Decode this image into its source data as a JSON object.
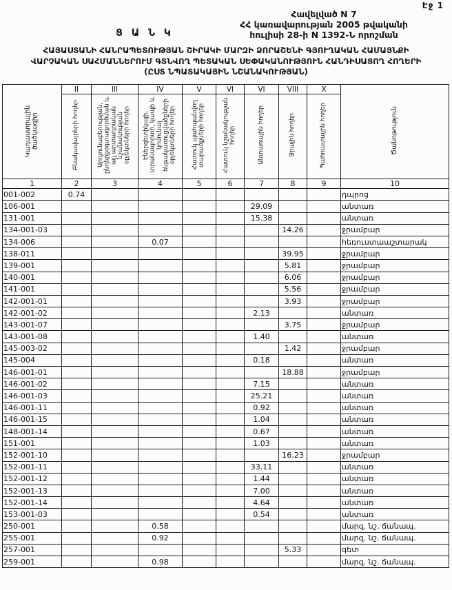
{
  "page": {
    "page_label": "Էջ 1"
  },
  "header": {
    "appendix": "Հավելված N 7",
    "decree_line1": "ՀՀ կառավարության 2005 թվականի",
    "decree_line2": "հուլիսի 28-ի N 1392-Ն որոշման",
    "title": "Ց Ա Ն Կ",
    "subtitle_line1": "ՀԱՅԱՍՏԱՆԻ ՀԱՆՐԱՊԵՏՈՒԹՅԱՆ ՇԻՐԱԿԻ ՄԱՐԶԻ ՁՈՐԱՇԵՆԻ ԳՅՈՒՂԱԿԱՆ ՀԱՄԱՅՆՔԻ",
    "subtitle_line2": "ՎԱՐՉԱԿԱՆ ՍԱՀՄԱՆՆԵՐՈՒՄ ԳՏՆՎՈՂ ՊԵՏԱԿԱՆ ՍԵՓԱԿԱՆՈՒԹՅՈՒՆ ՀԱՆԴԻՍԱՑՈՂ ՀՈՂԵՐԻ",
    "subtitle_line3": "(ԸՍՏ ՆՊԱՏԱԿԱՅԻՆ ՆՇԱՆԱԿՈՒԹՅԱՆ)"
  },
  "table": {
    "roman_numerals": [
      "II",
      "III",
      "IV",
      "V",
      "VI",
      "VI",
      "VIII",
      "X"
    ],
    "column_headers": [
      "Կադաստրային ծածկագիր",
      "Բնակավայրերի հողեր",
      "Արդյունաբերության, ընդերքօգտագործման և այլ արտադրական նշանակության օբյեկտների հողեր",
      "Էներգետիկայի, տրանսպորտի, կապի և կոմունալ ենթակառուցվածքների օբյեկտների հողեր",
      "Հատուկ պահպանվող տարածքների հողեր",
      "Հատուկ նշանակության հողեր",
      "Անտառային հողեր",
      "Ջրային հողեր",
      "Պահուստային հողեր",
      "Ծանոթություն"
    ],
    "column_numbers": [
      "1",
      "2",
      "3",
      "4",
      "5",
      "6",
      "7",
      "8",
      "9",
      "10"
    ],
    "rows": [
      [
        "001-002",
        "0.74",
        "",
        "",
        "",
        "",
        "",
        "",
        "",
        "դպրոց"
      ],
      [
        "106-001",
        "",
        "",
        "",
        "",
        "",
        "29.09",
        "",
        "",
        "անտառ"
      ],
      [
        "131-001",
        "",
        "",
        "",
        "",
        "",
        "15.38",
        "",
        "",
        "անտառ"
      ],
      [
        "134-001-03",
        "",
        "",
        "",
        "",
        "",
        "",
        "14.26",
        "",
        "ջրամբար"
      ],
      [
        "134-006",
        "",
        "",
        "0.07",
        "",
        "",
        "",
        "",
        "",
        "հեռուստաաշտարակ"
      ],
      [
        "138-011",
        "",
        "",
        "",
        "",
        "",
        "",
        "39.95",
        "",
        "ջրամբար"
      ],
      [
        "139-001",
        "",
        "",
        "",
        "",
        "",
        "",
        "5.81",
        "",
        "ջրամբար"
      ],
      [
        "140-001",
        "",
        "",
        "",
        "",
        "",
        "",
        "6.06",
        "",
        "ջրամբար"
      ],
      [
        "141-001",
        "",
        "",
        "",
        "",
        "",
        "",
        "5.56",
        "",
        "ջրամբար"
      ],
      [
        "142-001-01",
        "",
        "",
        "",
        "",
        "",
        "",
        "3.93",
        "",
        "ջրամբար"
      ],
      [
        "142-001-02",
        "",
        "",
        "",
        "",
        "",
        "2.13",
        "",
        "",
        "անտառ"
      ],
      [
        "143-001-07",
        "",
        "",
        "",
        "",
        "",
        "",
        "3.75",
        "",
        "ջրամբար"
      ],
      [
        "143-001-08",
        "",
        "",
        "",
        "",
        "",
        "1.40",
        "",
        "",
        "անտառ"
      ],
      [
        "145-003-02",
        "",
        "",
        "",
        "",
        "",
        "",
        "1.42",
        "",
        "ջրամբար"
      ],
      [
        "145-004",
        "",
        "",
        "",
        "",
        "",
        "0.18",
        "",
        "",
        "անտառ"
      ],
      [
        "146-001-01",
        "",
        "",
        "",
        "",
        "",
        "",
        "18.88",
        "",
        "ջրամբար"
      ],
      [
        "146-001-02",
        "",
        "",
        "",
        "",
        "",
        "7.15",
        "",
        "",
        "անտառ"
      ],
      [
        "146-001-03",
        "",
        "",
        "",
        "",
        "",
        "25.21",
        "",
        "",
        "անտառ"
      ],
      [
        "146-001-11",
        "",
        "",
        "",
        "",
        "",
        "0.92",
        "",
        "",
        "անտառ"
      ],
      [
        "146-001-15",
        "",
        "",
        "",
        "",
        "",
        "1.04",
        "",
        "",
        "անտառ"
      ],
      [
        "148-001-14",
        "",
        "",
        "",
        "",
        "",
        "0.67",
        "",
        "",
        "անտառ"
      ],
      [
        "151-001",
        "",
        "",
        "",
        "",
        "",
        "1.03",
        "",
        "",
        "անտառ"
      ],
      [
        "152-001-10",
        "",
        "",
        "",
        "",
        "",
        "",
        "16.23",
        "",
        "ջրամբար"
      ],
      [
        "152-001-11",
        "",
        "",
        "",
        "",
        "",
        "33.11",
        "",
        "",
        "անտառ"
      ],
      [
        "152-001-12",
        "",
        "",
        "",
        "",
        "",
        "1.44",
        "",
        "",
        "անտառ"
      ],
      [
        "152-001-13",
        "",
        "",
        "",
        "",
        "",
        "7.00",
        "",
        "",
        "անտառ"
      ],
      [
        "152-001-14",
        "",
        "",
        "",
        "",
        "",
        "4.64",
        "",
        "",
        "անտառ"
      ],
      [
        "153-001-03",
        "",
        "",
        "",
        "",
        "",
        "0.54",
        "",
        "",
        "անտառ"
      ],
      [
        "250-001",
        "",
        "",
        "0.58",
        "",
        "",
        "",
        "",
        "",
        "մարզ. նշ. ճանապ."
      ],
      [
        "255-001",
        "",
        "",
        "0.92",
        "",
        "",
        "",
        "",
        "",
        "մարզ. նշ. ճանապ."
      ],
      [
        "257-001",
        "",
        "",
        "",
        "",
        "",
        "",
        "5.33",
        "",
        "գետ"
      ],
      [
        "259-001",
        "",
        "",
        "0.98",
        "",
        "",
        "",
        "",
        "",
        "մարզ. նշ. ճանապ."
      ]
    ]
  }
}
